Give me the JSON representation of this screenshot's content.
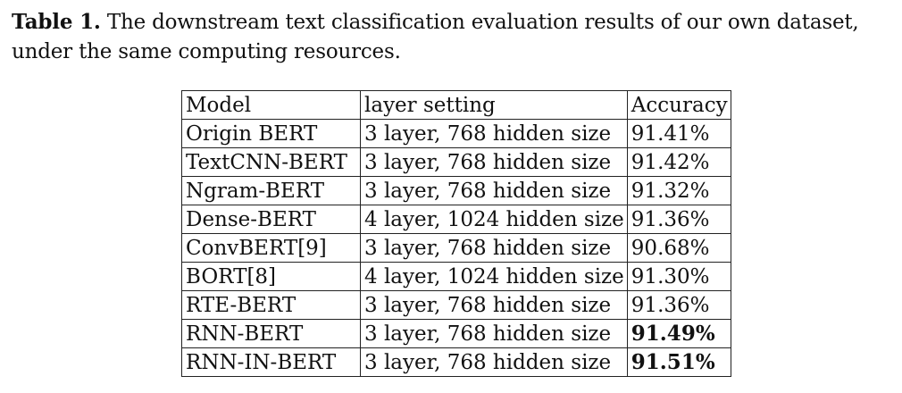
{
  "caption": {
    "label": "Table 1.",
    "text": " The downstream text classification evaluation results of our own dataset, under the same computing resources."
  },
  "table": {
    "headers": [
      "Model",
      "layer setting",
      "Accuracy"
    ],
    "rows": [
      {
        "model": "Origin BERT",
        "layer": "3 layer, 768 hidden size",
        "accuracy": "91.41%",
        "best": false
      },
      {
        "model": "TextCNN-BERT",
        "layer": "3 layer, 768 hidden size",
        "accuracy": "91.42%",
        "best": false
      },
      {
        "model": "Ngram-BERT",
        "layer": "3 layer, 768 hidden size",
        "accuracy": "91.32%",
        "best": false
      },
      {
        "model": "Dense-BERT",
        "layer": "4 layer, 1024 hidden size",
        "accuracy": "91.36%",
        "best": false
      },
      {
        "model": "ConvBERT[9]",
        "layer": "3 layer, 768 hidden size",
        "accuracy": "90.68%",
        "best": false
      },
      {
        "model": "BORT[8]",
        "layer": "4 layer, 1024 hidden size",
        "accuracy": "91.30%",
        "best": false
      },
      {
        "model": "RTE-BERT",
        "layer": "3 layer, 768 hidden size",
        "accuracy": "91.36%",
        "best": false
      },
      {
        "model": "RNN-BERT",
        "layer": "3 layer, 768 hidden size",
        "accuracy": "91.49%",
        "best": true
      },
      {
        "model": "RNN-IN-BERT",
        "layer": "3 layer, 768 hidden size",
        "accuracy": "91.51%",
        "best": true
      }
    ]
  }
}
